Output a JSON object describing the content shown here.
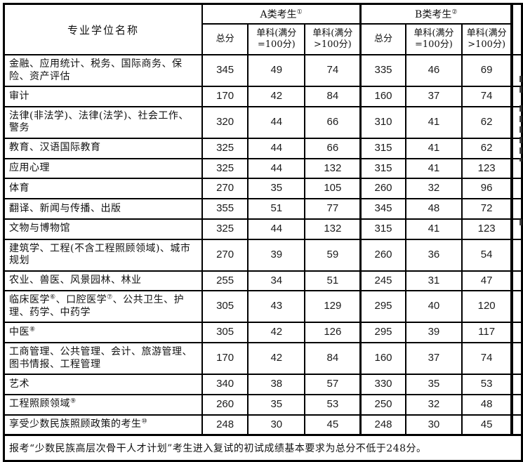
{
  "colors": {
    "border": "#000000",
    "text": "#111111",
    "number_text": "#1c1c1c",
    "background": "#ffffff"
  },
  "table": {
    "header": {
      "name_col": "专业学位名称",
      "group_a_label": "A类考生",
      "group_a_sup": "①",
      "group_b_label": "B类考生",
      "group_b_sup": "②",
      "sub_cols": [
        "总分",
        "单科(满分\n=100分)",
        "单科(满分\n>100分)"
      ]
    },
    "rows": [
      {
        "name": "金融、应用统计、税务、国际商务、保险、资产评估",
        "a": [
          345,
          49,
          74
        ],
        "b": [
          335,
          46,
          69
        ]
      },
      {
        "name": "审计",
        "a": [
          170,
          42,
          84
        ],
        "b": [
          160,
          37,
          74
        ]
      },
      {
        "name": "法律(非法学)、法律(法学)、社会工作、警务",
        "a": [
          320,
          44,
          66
        ],
        "b": [
          310,
          41,
          62
        ]
      },
      {
        "name": "教育、汉语国际教育",
        "a": [
          325,
          44,
          66
        ],
        "b": [
          315,
          41,
          62
        ]
      },
      {
        "name": "应用心理",
        "a": [
          325,
          44,
          132
        ],
        "b": [
          315,
          41,
          123
        ]
      },
      {
        "name": "体育",
        "a": [
          270,
          35,
          105
        ],
        "b": [
          260,
          32,
          96
        ]
      },
      {
        "name": "翻译、新闻与传播、出版",
        "a": [
          355,
          51,
          77
        ],
        "b": [
          345,
          48,
          72
        ]
      },
      {
        "name": "文物与博物馆",
        "a": [
          325,
          44,
          132
        ],
        "b": [
          315,
          41,
          123
        ]
      },
      {
        "name": "建筑学、工程(不含工程照顾领域)、城市规划",
        "a": [
          270,
          39,
          59
        ],
        "b": [
          260,
          36,
          54
        ]
      },
      {
        "name": "农业、兽医、风景园林、林业",
        "a": [
          255,
          34,
          51
        ],
        "b": [
          245,
          31,
          47
        ]
      },
      {
        "name": "临床医学⑥、口腔医学⑦、公共卫生、护理、药学、中药学",
        "a": [
          305,
          43,
          129
        ],
        "b": [
          295,
          40,
          120
        ]
      },
      {
        "name": "中医⑧",
        "a": [
          305,
          42,
          126
        ],
        "b": [
          295,
          39,
          117
        ]
      },
      {
        "name": "工商管理、公共管理、会计、旅游管理、图书情报、工程管理",
        "a": [
          170,
          42,
          84
        ],
        "b": [
          160,
          37,
          74
        ]
      },
      {
        "name": "艺术",
        "a": [
          340,
          38,
          57
        ],
        "b": [
          330,
          35,
          53
        ]
      },
      {
        "name": "工程照顾领域⑨",
        "a": [
          260,
          35,
          53
        ],
        "b": [
          250,
          32,
          48
        ]
      },
      {
        "name": "享受少数民族照顾政策的考生⑩",
        "a": [
          248,
          30,
          45
        ],
        "b": [
          248,
          30,
          45
        ]
      }
    ],
    "footer": "报考“少数民族高层次骨干人才计划”考生进入复试的初试成绩基本要求为总分不低于248分。"
  }
}
